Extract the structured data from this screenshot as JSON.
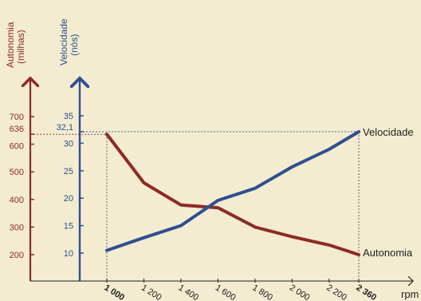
{
  "chart_data": {
    "type": "line",
    "x_axis": {
      "label": "rpm",
      "tick_labels": [
        "1 000",
        "1 200",
        "1 400",
        "1 600",
        "1 800",
        "2 000",
        "2 200",
        "2 360"
      ],
      "bold_ticks": [
        "1 000",
        "2 360"
      ]
    },
    "left_axis": {
      "title_line1": "Autonomia",
      "title_line2": "(milhas)",
      "tick_labels": [
        "700",
        "636",
        "600",
        "500",
        "400",
        "300",
        "200"
      ],
      "range": [
        150,
        750
      ]
    },
    "right_axis": {
      "title_line1": "Velocidade",
      "title_line2": "(nós)",
      "tick_labels": [
        "35",
        "32,1",
        "30",
        "25",
        "20",
        "15",
        "10"
      ],
      "range": [
        5,
        40
      ]
    },
    "series": [
      {
        "name": "Velocidade",
        "axis": "right",
        "color": "#2f4f8f",
        "x": [
          1000,
          1200,
          1400,
          1600,
          1800,
          2000,
          2200,
          2360
        ],
        "values": [
          10.5,
          12.8,
          15.0,
          19.6,
          21.8,
          25.7,
          28.9,
          32.1
        ]
      },
      {
        "name": "Autonomia",
        "axis": "left",
        "color": "#8e2a25",
        "x": [
          1000,
          1200,
          1400,
          1600,
          1800,
          2000,
          2200,
          2360
        ],
        "values": [
          636,
          460,
          380,
          370,
          300,
          265,
          235,
          200
        ]
      }
    ],
    "colors": {
      "autonomia": "#8e2a25",
      "velocidade": "#2f4f8f",
      "background": "#f3ecd1"
    }
  }
}
